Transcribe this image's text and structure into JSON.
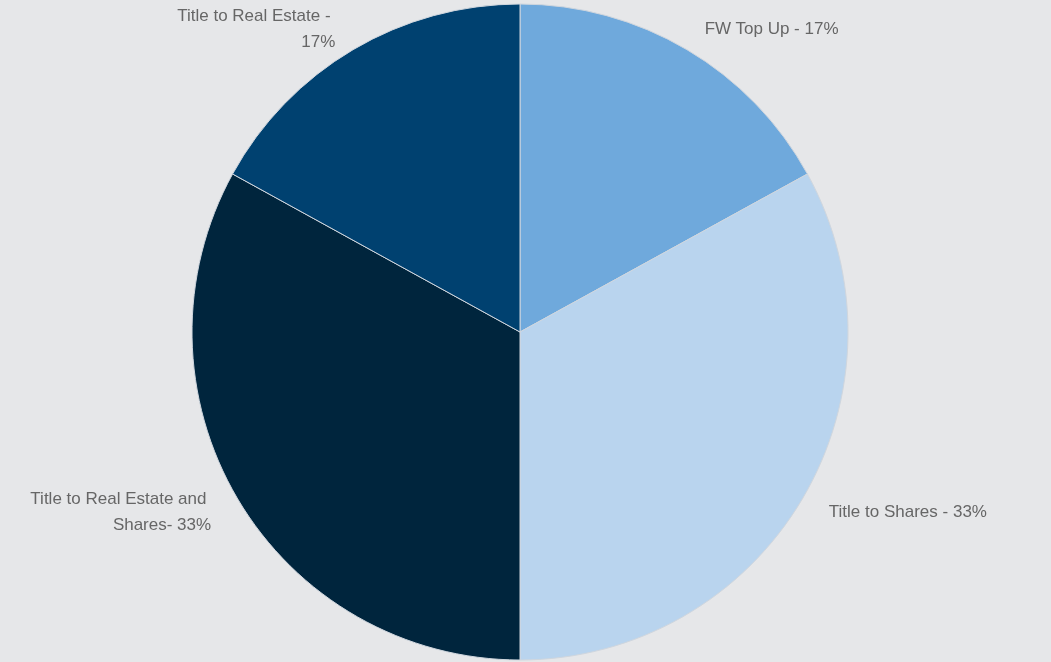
{
  "chart_data": {
    "type": "pie",
    "categories": [
      "FW Top Up - 17%",
      "Title to Shares - 33%",
      "Title to Real Estate and Shares- 33%",
      "Title to Real Estate - 17%"
    ],
    "values": [
      17,
      33,
      33,
      17
    ],
    "colors": [
      "#6fa9dc",
      "#b9d4ee",
      "#00253d",
      "#004170"
    ]
  }
}
